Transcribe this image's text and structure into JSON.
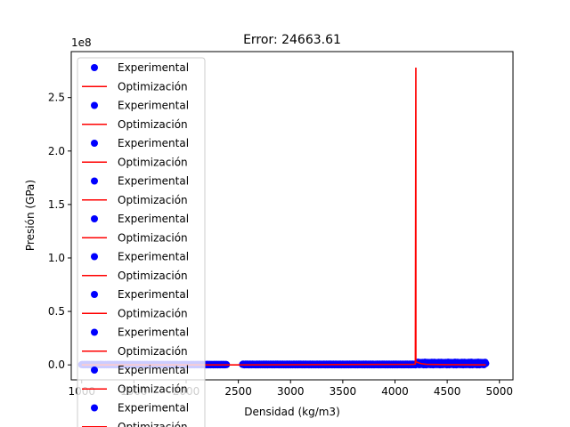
{
  "chart_data": {
    "type": "scatter",
    "title": "Error: 24663.61",
    "xlabel": "Densidad (kg/m3)",
    "ylabel": "Presión (GPa)",
    "y_offset_label": "1e8",
    "xlim": [
      900,
      5130
    ],
    "ylim": [
      -14000000,
      293000000
    ],
    "x_ticks": [
      1000,
      1500,
      2000,
      2500,
      3000,
      3500,
      4000,
      4500,
      5000
    ],
    "x_tick_labels": [
      "1000",
      "1500",
      "2000",
      "2500",
      "3000",
      "3500",
      "4000",
      "4500",
      "5000"
    ],
    "y_ticks": [
      0,
      50000000,
      100000000,
      150000000,
      200000000,
      250000000
    ],
    "y_tick_labels": [
      "0.0",
      "0.5",
      "1.0",
      "1.5",
      "2.0",
      "2.5"
    ],
    "grid": false,
    "legend_position": "upper-left",
    "legend": [
      {
        "label": "Experimental",
        "marker": "dot"
      },
      {
        "label": "Optimización",
        "marker": "line"
      },
      {
        "label": "Experimental",
        "marker": "dot"
      },
      {
        "label": "Optimización",
        "marker": "line"
      },
      {
        "label": "Experimental",
        "marker": "dot"
      },
      {
        "label": "Optimización",
        "marker": "line"
      },
      {
        "label": "Experimental",
        "marker": "dot"
      },
      {
        "label": "Optimización",
        "marker": "line"
      },
      {
        "label": "Experimental",
        "marker": "dot"
      },
      {
        "label": "Optimización",
        "marker": "line"
      },
      {
        "label": "Experimental",
        "marker": "dot"
      },
      {
        "label": "Optimización",
        "marker": "line"
      },
      {
        "label": "Experimental",
        "marker": "dot"
      },
      {
        "label": "Optimización",
        "marker": "line"
      },
      {
        "label": "Experimental",
        "marker": "dot"
      },
      {
        "label": "Optimización",
        "marker": "line"
      },
      {
        "label": "Experimental",
        "marker": "dot"
      },
      {
        "label": "Optimización",
        "marker": "line"
      },
      {
        "label": "Experimental",
        "marker": "dot"
      },
      {
        "label": "Optimización",
        "marker": "line"
      }
    ],
    "series": [
      {
        "name": "Experimental",
        "style": "scatter",
        "color": "#0000ff",
        "x_ranges": [
          [
            1000,
            2390
          ],
          [
            2540,
            4210
          ],
          [
            4215,
            4870
          ]
        ],
        "y_ranges": [
          [
            0,
            500000
          ],
          [
            0,
            800000
          ],
          [
            0,
            2500000
          ]
        ],
        "spacing": 6
      },
      {
        "name": "Optimización",
        "style": "line",
        "color": "#ff0000",
        "x": [
          1000,
          2380,
          2390,
          2540,
          2545,
          4180,
          4195,
          4200,
          4200,
          4200,
          4210,
          4250,
          4300,
          4500,
          4700,
          4870
        ],
        "y": [
          0,
          0,
          0,
          0,
          0,
          500000,
          900000,
          278000000,
          278000000,
          3000000,
          2500000,
          1200000,
          500000,
          200000,
          100000,
          0
        ]
      }
    ],
    "colors": {
      "experimental": "#0000ff",
      "optimizacion": "#ff0000"
    }
  }
}
